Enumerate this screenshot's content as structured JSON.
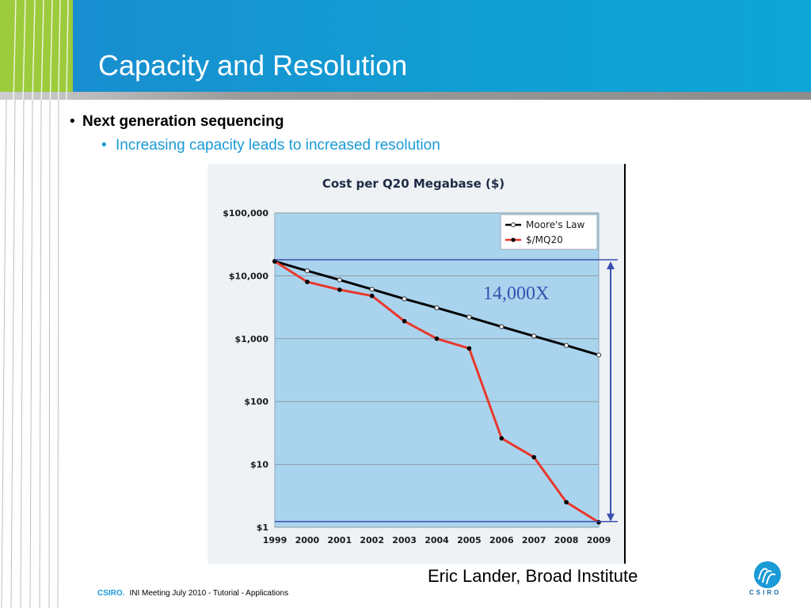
{
  "slide": {
    "title": "Capacity and Resolution",
    "bullet_main": "Next generation sequencing",
    "bullet_sub": "Increasing capacity leads to increased resolution",
    "credit": "Eric Lander, Broad Institute",
    "footer_brand": "CSIRO.",
    "footer_text": "INI Meeting July 2010 - Tutorial - Applications",
    "logo_text": "CSIRO",
    "bullet_glyph": "•"
  },
  "colors": {
    "header_blue": "#119fd3",
    "header_green": "#9ccb3b",
    "plot_bg": "#aad4ee",
    "moore_line": "#000000",
    "cost_line": "#e8382c",
    "annotation": "#3a4fb0"
  },
  "chart_data": {
    "type": "line",
    "title": "Cost per Q20 Megabase ($)",
    "x": [
      "1999",
      "2000",
      "2001",
      "2002",
      "2003",
      "2004",
      "2005",
      "2006",
      "2007",
      "2008",
      "2009"
    ],
    "y_scale": "log",
    "ylim": [
      1,
      100000
    ],
    "yticks": [
      {
        "value": 100000,
        "label": "$100,000"
      },
      {
        "value": 10000,
        "label": "$10,000"
      },
      {
        "value": 1000,
        "label": "$1,000"
      },
      {
        "value": 100,
        "label": "$100"
      },
      {
        "value": 10,
        "label": "$10"
      },
      {
        "value": 1,
        "label": "$1"
      }
    ],
    "grid": true,
    "legend_position": "top-right",
    "series": [
      {
        "name": "Moore's Law",
        "values": [
          17000,
          12000,
          8600,
          6100,
          4300,
          3100,
          2200,
          1550,
          1100,
          780,
          550
        ]
      },
      {
        "name": "$/MQ20",
        "values": [
          17000,
          8000,
          6000,
          4800,
          1900,
          1000,
          700,
          26,
          13,
          2.5,
          1.2
        ]
      }
    ],
    "annotation": "14,000X"
  }
}
